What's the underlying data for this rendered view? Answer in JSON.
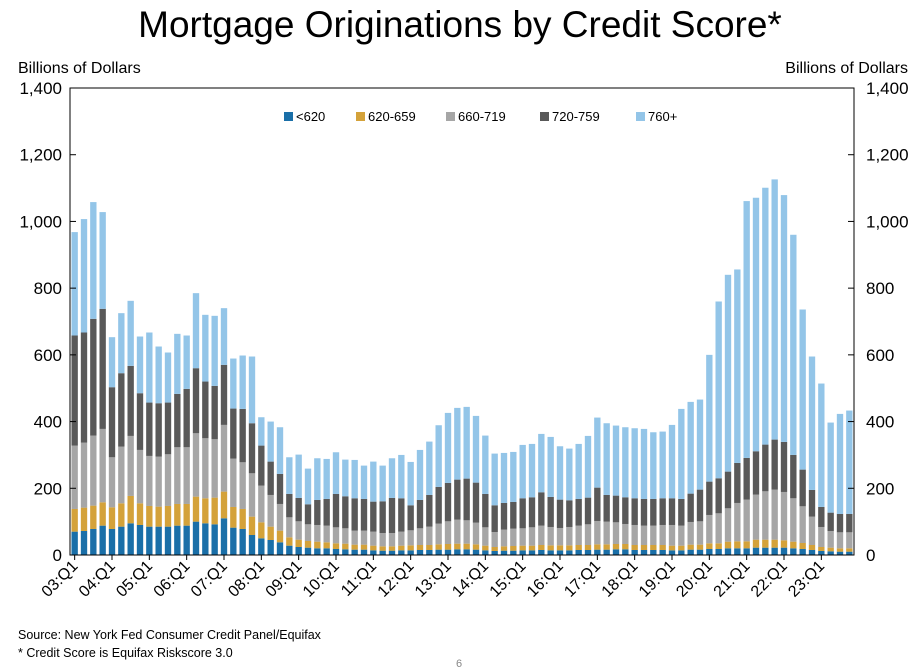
{
  "chart_data": {
    "type": "bar",
    "stacked": true,
    "title": "Mortgage Originations by Credit Score*",
    "ylabel_left": "Billions of Dollars",
    "ylabel_right": "Billions of Dollars",
    "ylim": [
      0,
      1400
    ],
    "yticks": [
      0,
      200,
      400,
      600,
      800,
      1000,
      1200,
      1400
    ],
    "ytick_labels": [
      "0",
      "200",
      "400",
      "600",
      "800",
      "1,000",
      "1,200",
      "1,400"
    ],
    "xtick_labels": [
      "03:Q1",
      "04:Q1",
      "05:Q1",
      "06:Q1",
      "07:Q1",
      "08:Q1",
      "09:Q1",
      "10:Q1",
      "11:Q1",
      "12:Q1",
      "13:Q1",
      "14:Q1",
      "15:Q1",
      "16:Q1",
      "17:Q1",
      "18:Q1",
      "19:Q1",
      "20:Q1",
      "21:Q1",
      "22:Q1",
      "23:Q1"
    ],
    "legend_position": "top-center",
    "grid": false,
    "categories": [
      "03:Q1",
      "03:Q2",
      "03:Q3",
      "03:Q4",
      "04:Q1",
      "04:Q2",
      "04:Q3",
      "04:Q4",
      "05:Q1",
      "05:Q2",
      "05:Q3",
      "05:Q4",
      "06:Q1",
      "06:Q2",
      "06:Q3",
      "06:Q4",
      "07:Q1",
      "07:Q2",
      "07:Q3",
      "07:Q4",
      "08:Q1",
      "08:Q2",
      "08:Q3",
      "08:Q4",
      "09:Q1",
      "09:Q2",
      "09:Q3",
      "09:Q4",
      "10:Q1",
      "10:Q2",
      "10:Q3",
      "10:Q4",
      "11:Q1",
      "11:Q2",
      "11:Q3",
      "11:Q4",
      "12:Q1",
      "12:Q2",
      "12:Q3",
      "12:Q4",
      "13:Q1",
      "13:Q2",
      "13:Q3",
      "13:Q4",
      "14:Q1",
      "14:Q2",
      "14:Q3",
      "14:Q4",
      "15:Q1",
      "15:Q2",
      "15:Q3",
      "15:Q4",
      "16:Q1",
      "16:Q2",
      "16:Q3",
      "16:Q4",
      "17:Q1",
      "17:Q2",
      "17:Q3",
      "17:Q4",
      "18:Q1",
      "18:Q2",
      "18:Q3",
      "18:Q4",
      "19:Q1",
      "19:Q2",
      "19:Q3",
      "19:Q4",
      "20:Q1",
      "20:Q2",
      "20:Q3",
      "20:Q4",
      "21:Q1",
      "21:Q2",
      "21:Q3",
      "21:Q4",
      "22:Q1",
      "22:Q2",
      "22:Q3",
      "22:Q4",
      "23:Q1",
      "23:Q2",
      "23:Q3",
      "23:Q4"
    ],
    "series": [
      {
        "name": "<620",
        "color": "#1a6fa8",
        "values": [
          70,
          72,
          78,
          88,
          78,
          85,
          95,
          90,
          85,
          85,
          85,
          88,
          88,
          100,
          95,
          92,
          110,
          82,
          78,
          60,
          50,
          45,
          38,
          28,
          24,
          22,
          20,
          20,
          18,
          17,
          16,
          16,
          14,
          13,
          13,
          14,
          14,
          15,
          15,
          16,
          16,
          17,
          17,
          16,
          14,
          12,
          13,
          13,
          14,
          14,
          15,
          14,
          14,
          14,
          15,
          15,
          16,
          16,
          17,
          17,
          15,
          15,
          15,
          15,
          14,
          14,
          16,
          16,
          18,
          18,
          20,
          20,
          20,
          22,
          22,
          22,
          22,
          20,
          18,
          15,
          12,
          11,
          10,
          10
        ]
      },
      {
        "name": "620-659",
        "color": "#d4a23a",
        "values": [
          68,
          70,
          70,
          70,
          65,
          70,
          82,
          65,
          62,
          60,
          62,
          65,
          65,
          75,
          75,
          80,
          80,
          62,
          60,
          55,
          48,
          40,
          35,
          25,
          22,
          20,
          20,
          18,
          17,
          17,
          15,
          15,
          14,
          13,
          13,
          14,
          15,
          15,
          15,
          16,
          17,
          17,
          17,
          16,
          14,
          12,
          13,
          14,
          14,
          14,
          15,
          15,
          15,
          15,
          15,
          15,
          16,
          16,
          16,
          16,
          15,
          15,
          15,
          15,
          14,
          14,
          15,
          15,
          17,
          17,
          20,
          21,
          21,
          24,
          24,
          24,
          22,
          20,
          18,
          15,
          12,
          11,
          10,
          10
        ]
      },
      {
        "name": "660-719",
        "color": "#a6a6a6",
        "values": [
          190,
          195,
          210,
          220,
          150,
          170,
          180,
          160,
          150,
          150,
          155,
          170,
          170,
          190,
          180,
          175,
          200,
          145,
          140,
          130,
          110,
          95,
          80,
          60,
          55,
          50,
          50,
          50,
          48,
          46,
          42,
          42,
          42,
          40,
          40,
          42,
          45,
          50,
          55,
          62,
          68,
          72,
          70,
          65,
          55,
          45,
          50,
          52,
          52,
          55,
          58,
          55,
          52,
          55,
          58,
          62,
          70,
          68,
          65,
          60,
          60,
          58,
          58,
          60,
          62,
          60,
          68,
          70,
          85,
          90,
          100,
          115,
          125,
          135,
          145,
          150,
          145,
          130,
          110,
          85,
          60,
          50,
          48,
          48
        ]
      },
      {
        "name": "720-759",
        "color": "#595959",
        "values": [
          330,
          330,
          350,
          360,
          210,
          220,
          210,
          170,
          160,
          160,
          155,
          160,
          175,
          195,
          170,
          160,
          180,
          150,
          160,
          150,
          120,
          100,
          90,
          70,
          70,
          60,
          75,
          80,
          100,
          96,
          97,
          95,
          90,
          95,
          105,
          100,
          75,
          85,
          95,
          110,
          115,
          120,
          125,
          120,
          100,
          80,
          80,
          80,
          90,
          90,
          100,
          90,
          85,
          80,
          80,
          80,
          100,
          80,
          80,
          80,
          80,
          80,
          80,
          80,
          80,
          80,
          85,
          95,
          100,
          105,
          110,
          120,
          125,
          130,
          140,
          150,
          150,
          130,
          110,
          80,
          60,
          55,
          55,
          55
        ]
      },
      {
        "name": "760+",
        "color": "#93c5e8",
        "values": [
          310,
          340,
          350,
          290,
          150,
          180,
          195,
          170,
          210,
          170,
          150,
          180,
          160,
          225,
          200,
          210,
          170,
          150,
          160,
          200,
          85,
          120,
          140,
          110,
          130,
          107,
          125,
          120,
          125,
          110,
          115,
          100,
          120,
          107,
          119,
          130,
          130,
          150,
          160,
          185,
          210,
          215,
          215,
          200,
          175,
          155,
          150,
          150,
          160,
          160,
          175,
          180,
          160,
          155,
          165,
          185,
          210,
          215,
          210,
          210,
          210,
          210,
          200,
          200,
          220,
          270,
          275,
          270,
          380,
          530,
          590,
          580,
          770,
          760,
          770,
          780,
          740,
          660,
          480,
          400,
          370,
          270,
          300,
          310
        ]
      }
    ]
  },
  "footnotes": {
    "source": "Source: New York Fed Consumer Credit Panel/Equifax",
    "score": "* Credit Score is Equifax Riskscore 3.0"
  },
  "page_number": "6"
}
